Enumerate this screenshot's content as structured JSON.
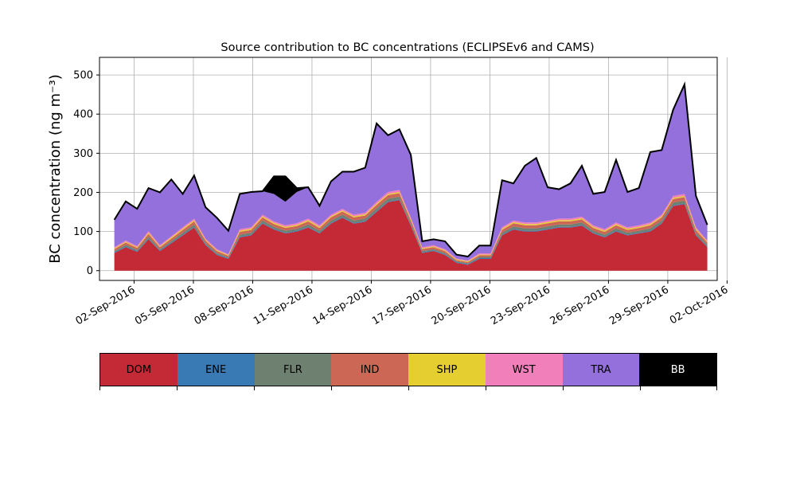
{
  "chart_data": {
    "type": "area",
    "stacked": true,
    "title": "Source contribution to BC concentrations (ECLIPSEv6 and CAMS)",
    "ylabel": "BC concentration (ng m⁻³)",
    "xlabel": "",
    "x_start": "2016-09-01",
    "x_end": "2016-10-01",
    "xlim": [
      "2016-08-31T06:00",
      "2016-10-01T12:00"
    ],
    "ylim": [
      -25,
      545
    ],
    "grid": true,
    "x_tick_labels": [
      "02-Sep-2016",
      "05-Sep-2016",
      "08-Sep-2016",
      "11-Sep-2016",
      "14-Sep-2016",
      "17-Sep-2016",
      "20-Sep-2016",
      "23-Sep-2016",
      "26-Sep-2016",
      "29-Sep-2016",
      "02-Oct-2016"
    ],
    "y_ticks": [
      0,
      100,
      200,
      300,
      400,
      500
    ],
    "series": [
      {
        "name": "DOM",
        "color": "#c42a35",
        "values": [
          45,
          60,
          48,
          80,
          50,
          70,
          90,
          110,
          65,
          40,
          30,
          85,
          90,
          120,
          105,
          95,
          100,
          110,
          95,
          120,
          135,
          120,
          125,
          150,
          175,
          180,
          115,
          45,
          50,
          40,
          20,
          15,
          30,
          30,
          90,
          105,
          100,
          100,
          105,
          110,
          110,
          115,
          95,
          85,
          100,
          90,
          95,
          100,
          120,
          165,
          170,
          90,
          60
        ]
      },
      {
        "name": "ENE",
        "color": "#3979b4",
        "values": [
          2,
          2,
          2,
          2,
          2,
          2,
          2,
          2,
          2,
          2,
          2,
          2,
          2,
          2,
          2,
          2,
          2,
          2,
          2,
          2,
          2,
          2,
          2,
          2,
          2,
          2,
          2,
          2,
          2,
          2,
          2,
          2,
          2,
          2,
          2,
          2,
          2,
          2,
          2,
          2,
          2,
          2,
          2,
          2,
          2,
          2,
          2,
          2,
          2,
          2,
          2,
          2,
          2
        ]
      },
      {
        "name": "FLR",
        "color": "#6e8070",
        "values": [
          3,
          4,
          3,
          5,
          3,
          4,
          5,
          6,
          4,
          3,
          2,
          5,
          5,
          6,
          5,
          5,
          5,
          6,
          5,
          6,
          6,
          6,
          6,
          7,
          7,
          7,
          5,
          3,
          3,
          3,
          2,
          2,
          3,
          3,
          5,
          6,
          6,
          6,
          6,
          6,
          6,
          6,
          5,
          5,
          6,
          5,
          5,
          6,
          6,
          7,
          7,
          5,
          4
        ]
      },
      {
        "name": "IND",
        "color": "#cc6655",
        "values": [
          5,
          6,
          5,
          7,
          5,
          6,
          7,
          8,
          6,
          5,
          4,
          7,
          7,
          8,
          7,
          7,
          7,
          8,
          7,
          8,
          8,
          8,
          8,
          9,
          9,
          9,
          7,
          5,
          5,
          5,
          3,
          3,
          4,
          4,
          7,
          8,
          8,
          8,
          8,
          8,
          8,
          8,
          7,
          7,
          8,
          7,
          7,
          8,
          8,
          9,
          9,
          7,
          6
        ]
      },
      {
        "name": "SHP",
        "color": "#e5cf30",
        "values": [
          2,
          2,
          2,
          3,
          2,
          3,
          3,
          3,
          2,
          2,
          2,
          3,
          3,
          3,
          3,
          3,
          3,
          3,
          3,
          3,
          3,
          3,
          3,
          3,
          3,
          3,
          3,
          2,
          2,
          2,
          2,
          2,
          2,
          2,
          3,
          3,
          3,
          3,
          3,
          3,
          3,
          3,
          3,
          3,
          3,
          3,
          3,
          3,
          3,
          3,
          3,
          3,
          2
        ]
      },
      {
        "name": "WST",
        "color": "#f07fba",
        "values": [
          3,
          3,
          3,
          4,
          3,
          3,
          4,
          4,
          3,
          3,
          2,
          4,
          4,
          4,
          4,
          4,
          4,
          4,
          4,
          4,
          4,
          4,
          4,
          5,
          5,
          5,
          4,
          3,
          3,
          3,
          2,
          2,
          3,
          3,
          4,
          4,
          4,
          4,
          4,
          4,
          4,
          4,
          4,
          4,
          4,
          4,
          4,
          4,
          4,
          5,
          5,
          4,
          3
        ]
      },
      {
        "name": "TRA",
        "color": "#9370db",
        "values": [
          70,
          100,
          95,
          110,
          135,
          145,
          85,
          110,
          80,
          80,
          60,
          90,
          90,
          60,
          70,
          60,
          80,
          80,
          45,
          85,
          95,
          110,
          115,
          200,
          145,
          155,
          160,
          15,
          15,
          20,
          10,
          10,
          20,
          20,
          120,
          95,
          145,
          165,
          85,
          75,
          90,
          130,
          80,
          95,
          160,
          90,
          95,
          180,
          165,
          220,
          280,
          80,
          40
        ]
      },
      {
        "name": "BB",
        "color": "#000000",
        "values": [
          0,
          0,
          0,
          0,
          0,
          0,
          0,
          0,
          0,
          0,
          0,
          0,
          0,
          0,
          0,
          0,
          0,
          0,
          0,
          0,
          0,
          0,
          0,
          0,
          0,
          0,
          0,
          0,
          0,
          0,
          0,
          0,
          0,
          0,
          0,
          0,
          0,
          0,
          0,
          0,
          0,
          0,
          0,
          0,
          0,
          0,
          0,
          0,
          0,
          0,
          0,
          0,
          0
        ]
      },
      {
        "name": "_bb_extra",
        "color": "#000000",
        "values": [
          0,
          0,
          0,
          0,
          0,
          0,
          0,
          0,
          0,
          0,
          0,
          0,
          0,
          0,
          45,
          65,
          10,
          0,
          5,
          0,
          0,
          0,
          0,
          0,
          0,
          0,
          0,
          0,
          0,
          0,
          0,
          0,
          0,
          0,
          0,
          0,
          0,
          0,
          0,
          0,
          0,
          0,
          0,
          0,
          0,
          0,
          0,
          0,
          0,
          0,
          0,
          0,
          0
        ]
      }
    ],
    "legend_labels": [
      "DOM",
      "ENE",
      "FLR",
      "IND",
      "SHP",
      "WST",
      "TRA",
      "BB"
    ],
    "legend_colors": [
      "#c42a35",
      "#3979b4",
      "#6e8070",
      "#cc6655",
      "#e5cf30",
      "#f07fba",
      "#9370db",
      "#000000"
    ]
  }
}
